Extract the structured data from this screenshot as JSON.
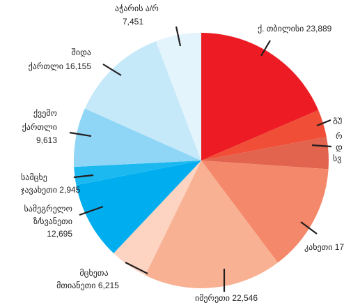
{
  "chart_data": {
    "type": "pie",
    "categories": [
      [
        "ქ. თბილისი 23,889"
      ],
      [
        "გუ"
      ],
      [
        "რ",
        "დ",
        "სვ"
      ],
      [
        "კახეთი 17"
      ],
      [
        "იმერეთი 22,546"
      ],
      [
        "მცხეთა",
        "მთიანეთი 6,215"
      ],
      [
        "სამეგრელო",
        "ზ/სვანეთი",
        "12,695"
      ],
      [
        "სამცხე",
        "ჯავახეთი 2,945"
      ],
      [
        "ქვემო",
        "ქართლი",
        "9,613"
      ],
      [
        "შიდა",
        "ქართლი 16,155"
      ],
      [
        "აჭარის ა/რ",
        "7,451"
      ]
    ],
    "values": [
      23889,
      4500,
      5200,
      17600,
      22546,
      6215,
      12695,
      2945,
      9613,
      16155,
      7451
    ],
    "colors": [
      "#ed1c24",
      "#f04e37",
      "#e2644e",
      "#f4886a",
      "#f8b193",
      "#fdd3c2",
      "#00aeef",
      "#1bb9f0",
      "#8fd6f6",
      "#c6e9fa",
      "#e3f4fd"
    ]
  }
}
